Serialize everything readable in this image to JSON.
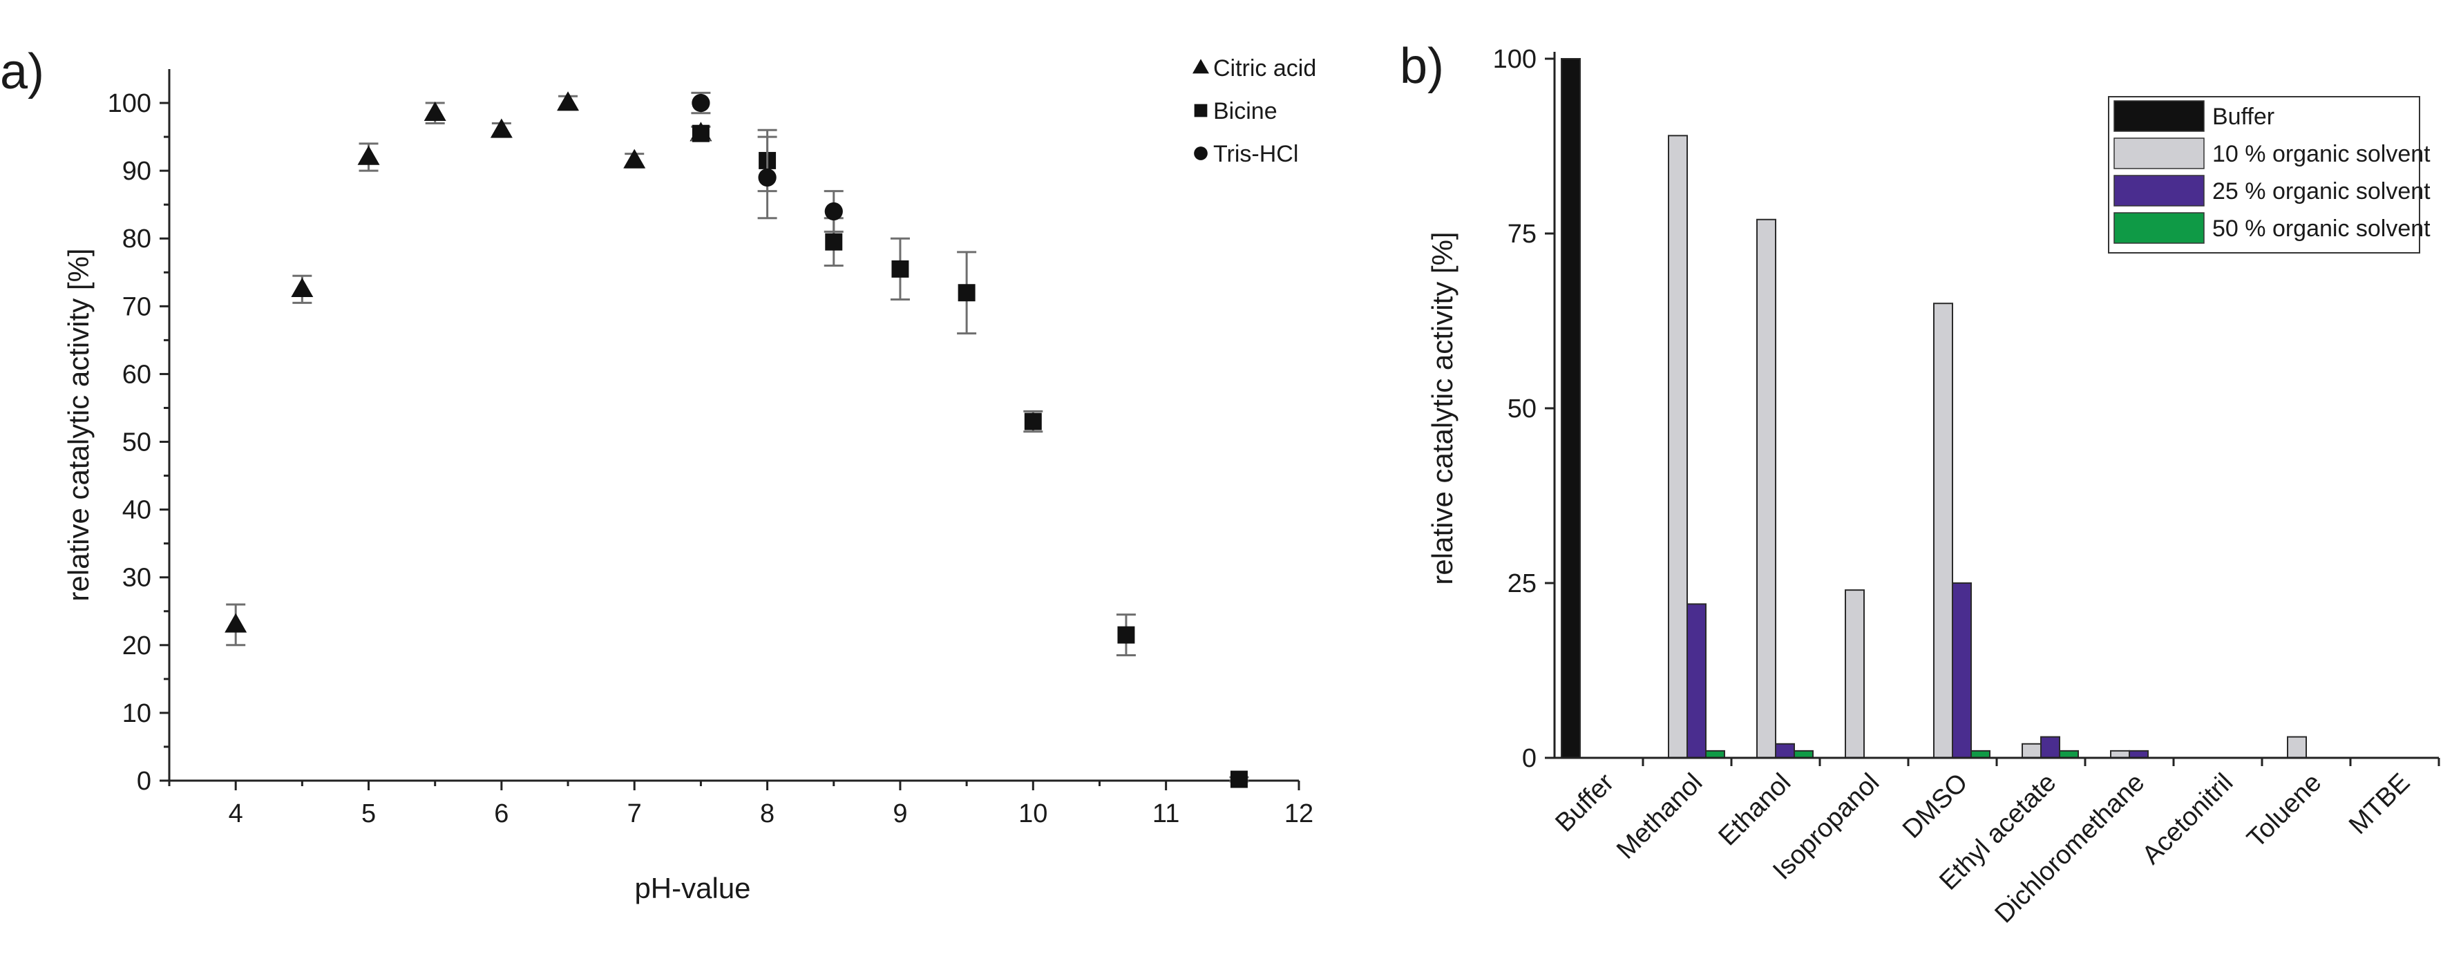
{
  "chart_data": [
    {
      "panel_label": "a)",
      "type": "scatter",
      "xlabel": "pH-value",
      "ylabel": "relative catalytic activity [%]",
      "xlim": [
        3.5,
        12
      ],
      "ylim": [
        0,
        105
      ],
      "xticks": [
        "4",
        "5",
        "6",
        "7",
        "8",
        "9",
        "10",
        "11",
        "12"
      ],
      "yticks": [
        "0",
        "10",
        "20",
        "30",
        "40",
        "50",
        "60",
        "70",
        "80",
        "90",
        "100"
      ],
      "grid": false,
      "legend_position": "top-right",
      "series": [
        {
          "name": "Citric acid",
          "marker": "triangle",
          "color": "#111111",
          "points": [
            {
              "x": 4,
              "y": 23,
              "err": 3
            },
            {
              "x": 4.5,
              "y": 72.5,
              "err": 2
            },
            {
              "x": 5,
              "y": 92,
              "err": 2
            },
            {
              "x": 5.5,
              "y": 98.5,
              "err": 1.5
            },
            {
              "x": 6,
              "y": 96,
              "err": 1
            },
            {
              "x": 6.5,
              "y": 100,
              "err": 1
            },
            {
              "x": 7,
              "y": 91.5,
              "err": 1
            },
            {
              "x": 7.5,
              "y": 95.5,
              "err": 1
            }
          ]
        },
        {
          "name": "Bicine",
          "marker": "square",
          "color": "#111111",
          "points": [
            {
              "x": 7.5,
              "y": 95.5,
              "err": 1
            },
            {
              "x": 8,
              "y": 91.5,
              "err": 4.5
            },
            {
              "x": 8.5,
              "y": 79.5,
              "err": 3.5
            },
            {
              "x": 9,
              "y": 75.5,
              "err": 4.5
            },
            {
              "x": 9.5,
              "y": 72,
              "err": 6
            },
            {
              "x": 10,
              "y": 53,
              "err": 1.5
            },
            {
              "x": 10.7,
              "y": 21.5,
              "err": 3
            },
            {
              "x": 11.55,
              "y": 0.2,
              "err": 0.3
            }
          ]
        },
        {
          "name": "Tris-HCl",
          "marker": "circle",
          "color": "#111111",
          "points": [
            {
              "x": 7.5,
              "y": 100,
              "err": 1.5
            },
            {
              "x": 8,
              "y": 89,
              "err": 6
            },
            {
              "x": 8.5,
              "y": 84,
              "err": 3
            }
          ]
        }
      ]
    },
    {
      "panel_label": "b)",
      "type": "bar",
      "xlabel": "",
      "ylabel": "relative catalytic activity [%]",
      "ylim": [
        0,
        100
      ],
      "yticks": [
        "0",
        "25",
        "50",
        "75",
        "100"
      ],
      "grid": false,
      "legend_position": "top-right",
      "categories": [
        "Buffer",
        "Methanol",
        "Ethanol",
        "Isopropanol",
        "DMSO",
        "Ethyl acetate",
        "Dichloromethane",
        "Acetonitril",
        "Toluene",
        "MTBE"
      ],
      "series": [
        {
          "name": "Buffer",
          "color": "#111111",
          "values": [
            100,
            0,
            0,
            0,
            0,
            0,
            0,
            0,
            0,
            0
          ]
        },
        {
          "name": "10 % organic solvent",
          "color": "#cfcfd3",
          "values": [
            0,
            89,
            77,
            24,
            65,
            2,
            1,
            0,
            3,
            0
          ]
        },
        {
          "name": "25 % organic solvent",
          "color": "#4a2d8f",
          "values": [
            0,
            22,
            2,
            0,
            25,
            3,
            1,
            0,
            0,
            0
          ]
        },
        {
          "name": "50 % organic solvent",
          "color": "#0f9a46",
          "values": [
            0,
            1,
            1,
            0,
            1,
            1,
            0,
            0,
            0,
            0
          ]
        }
      ]
    }
  ]
}
